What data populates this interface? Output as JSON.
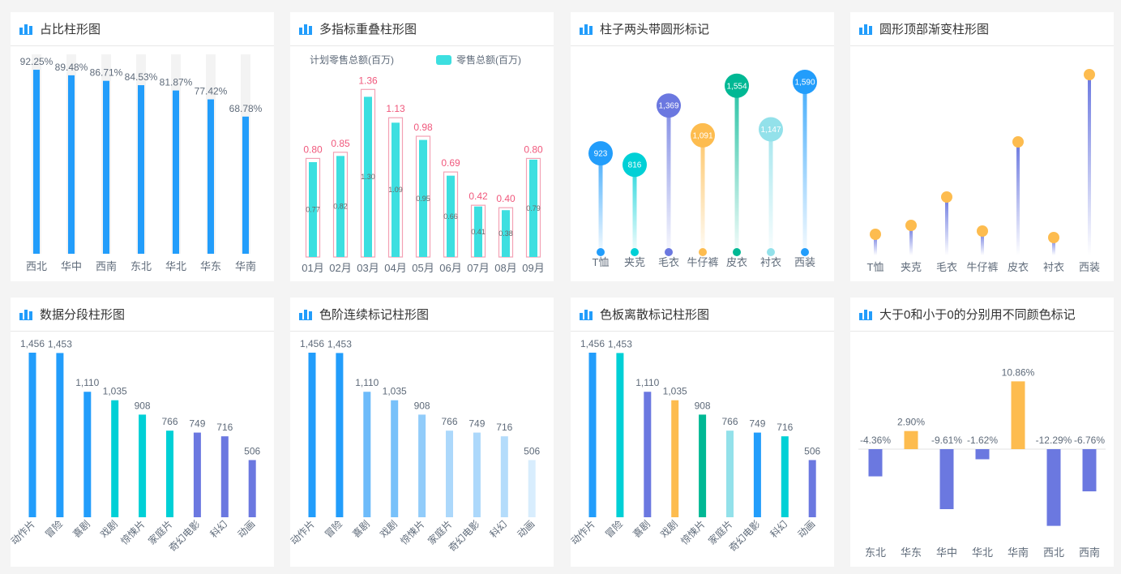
{
  "colors": {
    "blue": "#229dfb",
    "cyan": "#00d0d6",
    "purple": "#6b78e0",
    "orange": "#fdbc4f",
    "green": "#00b894",
    "lightcyan": "#93e1ea",
    "pink": "#f3a1b4",
    "pinkText": "#f0587c",
    "teal": "#3ddfe0",
    "text": "#5f6b7a"
  },
  "chart_data": [
    {
      "title": "占比柱形图",
      "type": "bar",
      "categories": [
        "西北",
        "华中",
        "西南",
        "东北",
        "华北",
        "华东",
        "华南"
      ],
      "values": [
        92.25,
        89.48,
        86.71,
        84.53,
        81.87,
        77.42,
        68.78
      ],
      "labels": [
        "92.25%",
        "89.48%",
        "86.71%",
        "84.53%",
        "81.87%",
        "77.42%",
        "68.78%"
      ],
      "ylim": [
        0,
        100
      ],
      "background_track": true
    },
    {
      "title": "多指标重叠柱形图",
      "type": "bar",
      "categories": [
        "01月",
        "02月",
        "03月",
        "04月",
        "05月",
        "06月",
        "07月",
        "08月",
        "09月"
      ],
      "legend": [
        "计划零售总额(百万)",
        "零售总额(百万)"
      ],
      "series": [
        {
          "name": "计划零售总额(百万)",
          "values": [
            0.8,
            0.85,
            1.36,
            1.13,
            0.98,
            0.69,
            0.42,
            0.4,
            0.8
          ],
          "labels": [
            "0.80",
            "0.85",
            "1.36",
            "1.13",
            "0.98",
            "0.69",
            "0.42",
            "0.40",
            "0.80"
          ]
        },
        {
          "name": "零售总额(百万)",
          "values": [
            0.77,
            0.82,
            1.3,
            1.09,
            0.95,
            0.66,
            0.41,
            0.38,
            0.79
          ],
          "labels": [
            "0.77",
            "0.82",
            "1.30",
            "1.09",
            "0.95",
            "0.66",
            "0.41",
            "0.38",
            "0.79"
          ]
        }
      ]
    },
    {
      "title": "柱子两头带圆形标记",
      "type": "bar",
      "categories": [
        "T恤",
        "夹克",
        "毛衣",
        "牛仔裤",
        "皮衣",
        "衬衣",
        "西装"
      ],
      "values": [
        923,
        816,
        1369,
        1091,
        1554,
        1147,
        1590
      ],
      "labels": [
        "923",
        "816",
        "1,369",
        "1,091",
        "1,554",
        "1,147",
        "1,590"
      ],
      "colors": [
        "#229dfb",
        "#00d0d6",
        "#6b78e0",
        "#fdbc4f",
        "#00b894",
        "#93e1ea",
        "#229dfb"
      ]
    },
    {
      "title": "圆形顶部渐变柱形图",
      "type": "bar",
      "categories": [
        "T恤",
        "夹克",
        "毛衣",
        "牛仔裤",
        "皮衣",
        "衬衣",
        "西装"
      ],
      "values": [
        26,
        37,
        72,
        30,
        140,
        22,
        223
      ]
    },
    {
      "title": "数据分段柱形图",
      "type": "bar",
      "categories": [
        "动作片",
        "冒险",
        "喜剧",
        "戏剧",
        "惊悚片",
        "家庭片",
        "奇幻电影",
        "科幻",
        "动画"
      ],
      "values": [
        1456,
        1453,
        1110,
        1035,
        908,
        766,
        749,
        716,
        506
      ],
      "labels": [
        "1,456",
        "1,453",
        "1,110",
        "1,035",
        "908",
        "766",
        "749",
        "716",
        "506"
      ],
      "colors": [
        "#229dfb",
        "#229dfb",
        "#229dfb",
        "#00d0d6",
        "#00d0d6",
        "#00d0d6",
        "#6b78e0",
        "#6b78e0",
        "#6b78e0"
      ]
    },
    {
      "title": "色阶连续标记柱形图",
      "type": "bar",
      "categories": [
        "动作片",
        "冒险",
        "喜剧",
        "戏剧",
        "惊悚片",
        "家庭片",
        "奇幻电影",
        "科幻",
        "动画"
      ],
      "values": [
        1456,
        1453,
        1110,
        1035,
        908,
        766,
        749,
        716,
        506
      ],
      "labels": [
        "1,456",
        "1,453",
        "1,110",
        "1,035",
        "908",
        "766",
        "749",
        "716",
        "506"
      ],
      "colors": [
        "#229dfb",
        "#229dfb",
        "#6dbbfa",
        "#78c1fa",
        "#91ccfa",
        "#acd8fb",
        "#acd8fb",
        "#b4dcfb",
        "#d8edfd"
      ]
    },
    {
      "title": "色板离散标记柱形图",
      "type": "bar",
      "categories": [
        "动作片",
        "冒险",
        "喜剧",
        "戏剧",
        "惊悚片",
        "家庭片",
        "奇幻电影",
        "科幻",
        "动画"
      ],
      "values": [
        1456,
        1453,
        1110,
        1035,
        908,
        766,
        749,
        716,
        506
      ],
      "labels": [
        "1,456",
        "1,453",
        "1,110",
        "1,035",
        "908",
        "766",
        "749",
        "716",
        "506"
      ],
      "colors": [
        "#229dfb",
        "#00d0d6",
        "#6b78e0",
        "#fdbc4f",
        "#00b894",
        "#93e1ea",
        "#229dfb",
        "#00d0d6",
        "#6b78e0"
      ]
    },
    {
      "title": "大于0和小于0的分别用不同颜色标记",
      "type": "bar",
      "categories": [
        "东北",
        "华东",
        "华中",
        "华北",
        "华南",
        "西北",
        "西南"
      ],
      "values": [
        -4.36,
        2.9,
        -9.61,
        -1.62,
        10.86,
        -12.29,
        -6.76
      ],
      "labels": [
        "-4.36%",
        "2.90%",
        "-9.61%",
        "-1.62%",
        "10.86%",
        "-12.29%",
        "-6.76%"
      ],
      "positive_color": "#fdbc4f",
      "negative_color": "#6b78e0"
    }
  ]
}
